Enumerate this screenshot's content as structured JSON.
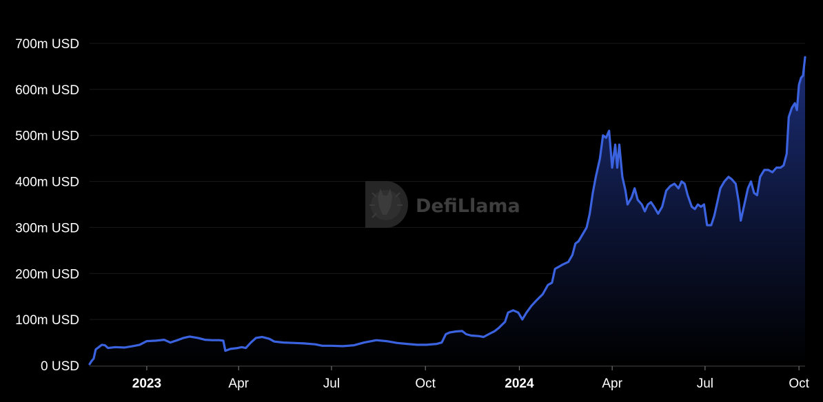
{
  "watermark": {
    "text": "DefiLlama",
    "icon": "llama-logo-icon"
  },
  "colors": {
    "background": "#000000",
    "line": "#3B63E0",
    "area_top": "#1C2E78",
    "area_bottom": "#000000",
    "axis_text": "#ffffff",
    "grid": "#1a1a1a"
  },
  "chart_data": {
    "type": "area",
    "title": "",
    "xlabel": "",
    "ylabel": "",
    "grid": "horizontal",
    "legend": "none",
    "ylim": [
      0,
      700
    ],
    "xlim": [
      "2022-11-06",
      "2024-10-07"
    ],
    "y_ticks": [
      {
        "value": 0,
        "label": "0 USD"
      },
      {
        "value": 100,
        "label": "100m USD"
      },
      {
        "value": 200,
        "label": "200m USD"
      },
      {
        "value": 300,
        "label": "300m USD"
      },
      {
        "value": 400,
        "label": "400m USD"
      },
      {
        "value": 500,
        "label": "500m USD"
      },
      {
        "value": 600,
        "label": "600m USD"
      },
      {
        "value": 700,
        "label": "700m USD"
      }
    ],
    "x_ticks": [
      {
        "date": "2023-01-01",
        "label": "2023",
        "bold": true
      },
      {
        "date": "2023-04-01",
        "label": "Apr",
        "bold": false
      },
      {
        "date": "2023-07-01",
        "label": "Jul",
        "bold": false
      },
      {
        "date": "2023-10-01",
        "label": "Oct",
        "bold": false
      },
      {
        "date": "2024-01-01",
        "label": "2024",
        "bold": true
      },
      {
        "date": "2024-04-01",
        "label": "Apr",
        "bold": false
      },
      {
        "date": "2024-07-01",
        "label": "Jul",
        "bold": false
      },
      {
        "date": "2024-10-01",
        "label": "Oct",
        "bold": false
      }
    ],
    "series": [
      {
        "unit": "m USD",
        "points": [
          [
            "2022-11-06",
            3
          ],
          [
            "2022-11-08",
            10
          ],
          [
            "2022-11-10",
            15
          ],
          [
            "2022-11-12",
            35
          ],
          [
            "2022-11-15",
            40
          ],
          [
            "2022-11-18",
            45
          ],
          [
            "2022-11-21",
            44
          ],
          [
            "2022-11-24",
            38
          ],
          [
            "2022-12-01",
            40
          ],
          [
            "2022-12-10",
            39
          ],
          [
            "2022-12-18",
            42
          ],
          [
            "2022-12-25",
            45
          ],
          [
            "2023-01-01",
            53
          ],
          [
            "2023-01-10",
            54
          ],
          [
            "2023-01-18",
            56
          ],
          [
            "2023-01-24",
            50
          ],
          [
            "2023-01-31",
            55
          ],
          [
            "2023-02-06",
            60
          ],
          [
            "2023-02-12",
            63
          ],
          [
            "2023-02-20",
            60
          ],
          [
            "2023-02-27",
            56
          ],
          [
            "2023-03-06",
            55
          ],
          [
            "2023-03-13",
            55
          ],
          [
            "2023-03-17",
            54
          ],
          [
            "2023-03-19",
            32
          ],
          [
            "2023-03-24",
            36
          ],
          [
            "2023-03-31",
            38
          ],
          [
            "2023-04-04",
            40
          ],
          [
            "2023-04-08",
            38
          ],
          [
            "2023-04-13",
            50
          ],
          [
            "2023-04-18",
            60
          ],
          [
            "2023-04-24",
            62
          ],
          [
            "2023-05-01",
            58
          ],
          [
            "2023-05-06",
            52
          ],
          [
            "2023-05-15",
            50
          ],
          [
            "2023-05-25",
            49
          ],
          [
            "2023-06-04",
            48
          ],
          [
            "2023-06-15",
            46
          ],
          [
            "2023-06-22",
            43
          ],
          [
            "2023-07-01",
            43
          ],
          [
            "2023-07-12",
            42
          ],
          [
            "2023-07-23",
            44
          ],
          [
            "2023-08-02",
            50
          ],
          [
            "2023-08-14",
            55
          ],
          [
            "2023-08-24",
            53
          ],
          [
            "2023-09-03",
            49
          ],
          [
            "2023-09-13",
            47
          ],
          [
            "2023-09-23",
            45
          ],
          [
            "2023-10-02",
            45
          ],
          [
            "2023-10-12",
            47
          ],
          [
            "2023-10-17",
            50
          ],
          [
            "2023-10-21",
            68
          ],
          [
            "2023-10-25",
            72
          ],
          [
            "2023-10-31",
            74
          ],
          [
            "2023-11-06",
            75
          ],
          [
            "2023-11-10",
            68
          ],
          [
            "2023-11-15",
            65
          ],
          [
            "2023-11-22",
            64
          ],
          [
            "2023-11-27",
            62
          ],
          [
            "2023-12-02",
            68
          ],
          [
            "2023-12-08",
            75
          ],
          [
            "2023-12-12",
            82
          ],
          [
            "2023-12-18",
            95
          ],
          [
            "2023-12-21",
            115
          ],
          [
            "2023-12-26",
            120
          ],
          [
            "2023-12-31",
            115
          ],
          [
            "2024-01-04",
            100
          ],
          [
            "2024-01-08",
            115
          ],
          [
            "2024-01-13",
            130
          ],
          [
            "2024-01-18",
            142
          ],
          [
            "2024-01-24",
            155
          ],
          [
            "2024-01-29",
            175
          ],
          [
            "2024-02-02",
            180
          ],
          [
            "2024-02-05",
            210
          ],
          [
            "2024-02-09",
            215
          ],
          [
            "2024-02-13",
            220
          ],
          [
            "2024-02-18",
            225
          ],
          [
            "2024-02-22",
            240
          ],
          [
            "2024-02-25",
            265
          ],
          [
            "2024-02-28",
            270
          ],
          [
            "2024-03-03",
            285
          ],
          [
            "2024-03-07",
            300
          ],
          [
            "2024-03-10",
            330
          ],
          [
            "2024-03-13",
            375
          ],
          [
            "2024-03-16",
            410
          ],
          [
            "2024-03-20",
            450
          ],
          [
            "2024-03-23",
            500
          ],
          [
            "2024-03-26",
            495
          ],
          [
            "2024-03-29",
            510
          ],
          [
            "2024-04-01",
            430
          ],
          [
            "2024-04-04",
            480
          ],
          [
            "2024-04-06",
            430
          ],
          [
            "2024-04-08",
            480
          ],
          [
            "2024-04-11",
            410
          ],
          [
            "2024-04-14",
            380
          ],
          [
            "2024-04-16",
            350
          ],
          [
            "2024-04-20",
            365
          ],
          [
            "2024-04-23",
            385
          ],
          [
            "2024-04-26",
            360
          ],
          [
            "2024-04-30",
            350
          ],
          [
            "2024-05-03",
            335
          ],
          [
            "2024-05-06",
            350
          ],
          [
            "2024-05-09",
            355
          ],
          [
            "2024-05-12",
            345
          ],
          [
            "2024-05-16",
            330
          ],
          [
            "2024-05-20",
            345
          ],
          [
            "2024-05-24",
            380
          ],
          [
            "2024-05-28",
            390
          ],
          [
            "2024-06-01",
            395
          ],
          [
            "2024-06-05",
            385
          ],
          [
            "2024-06-08",
            400
          ],
          [
            "2024-06-11",
            395
          ],
          [
            "2024-06-14",
            370
          ],
          [
            "2024-06-18",
            345
          ],
          [
            "2024-06-21",
            340
          ],
          [
            "2024-06-24",
            350
          ],
          [
            "2024-06-27",
            345
          ],
          [
            "2024-06-30",
            350
          ],
          [
            "2024-07-03",
            305
          ],
          [
            "2024-07-07",
            305
          ],
          [
            "2024-07-10",
            325
          ],
          [
            "2024-07-13",
            355
          ],
          [
            "2024-07-16",
            385
          ],
          [
            "2024-07-20",
            400
          ],
          [
            "2024-07-24",
            410
          ],
          [
            "2024-07-27",
            405
          ],
          [
            "2024-07-31",
            395
          ],
          [
            "2024-08-03",
            355
          ],
          [
            "2024-08-05",
            315
          ],
          [
            "2024-08-08",
            345
          ],
          [
            "2024-08-12",
            385
          ],
          [
            "2024-08-15",
            400
          ],
          [
            "2024-08-18",
            375
          ],
          [
            "2024-08-21",
            370
          ],
          [
            "2024-08-24",
            410
          ],
          [
            "2024-08-28",
            425
          ],
          [
            "2024-09-01",
            425
          ],
          [
            "2024-09-05",
            420
          ],
          [
            "2024-09-09",
            430
          ],
          [
            "2024-09-13",
            430
          ],
          [
            "2024-09-16",
            435
          ],
          [
            "2024-09-19",
            460
          ],
          [
            "2024-09-21",
            540
          ],
          [
            "2024-09-24",
            560
          ],
          [
            "2024-09-27",
            570
          ],
          [
            "2024-09-29",
            555
          ],
          [
            "2024-10-01",
            610
          ],
          [
            "2024-10-03",
            625
          ],
          [
            "2024-10-05",
            630
          ],
          [
            "2024-10-07",
            670
          ]
        ]
      }
    ]
  }
}
